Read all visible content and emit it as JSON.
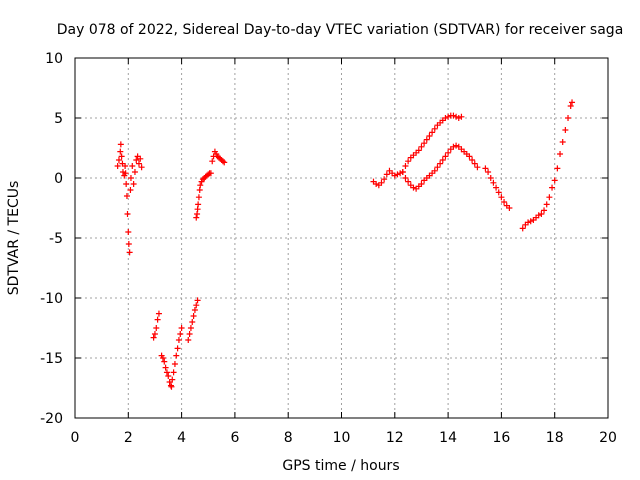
{
  "chart_data": {
    "type": "scatter",
    "title": "Day 078 of 2022, Sidereal Day-to-day VTEC variation (SDTVAR) for receiver saga",
    "xlabel": "GPS time / hours",
    "ylabel": "SDTVAR / TECUs",
    "xlim": [
      0,
      20
    ],
    "ylim": [
      -20,
      10
    ],
    "xticks": [
      "0",
      "2",
      "4",
      "6",
      "8",
      "10",
      "12",
      "14",
      "16",
      "18",
      "20"
    ],
    "yticks": [
      "10",
      "5",
      "0",
      "-5",
      "-10",
      "-15",
      "-20"
    ],
    "grid": true,
    "marker": "+",
    "color": "#ff0000",
    "series": [
      {
        "name": "seg1",
        "x": [
          1.6,
          1.65,
          1.7,
          1.72,
          1.75,
          1.78,
          1.8,
          1.85,
          1.88,
          1.9,
          1.92,
          1.95,
          1.97,
          2.0,
          2.02,
          2.05,
          2.08,
          2.1,
          2.15,
          2.2,
          2.25,
          2.3,
          2.35,
          2.4,
          2.45,
          2.5
        ],
        "y": [
          1.0,
          1.5,
          2.2,
          2.8,
          1.8,
          1.2,
          0.5,
          0.2,
          1.0,
          0.4,
          -0.5,
          -1.5,
          -3.0,
          -4.5,
          -5.5,
          -6.2,
          -1.0,
          0.0,
          1.0,
          -0.5,
          0.5,
          1.5,
          1.8,
          1.2,
          1.6,
          0.9
        ]
      },
      {
        "name": "seg2",
        "x": [
          2.95,
          3.0,
          3.05,
          3.1,
          3.15
        ],
        "y": [
          -13.3,
          -13.0,
          -12.5,
          -11.8,
          -11.3
        ]
      },
      {
        "name": "seg3",
        "x": [
          3.25,
          3.3,
          3.35,
          3.4,
          3.45,
          3.5,
          3.55,
          3.6,
          3.62,
          3.65,
          3.7,
          3.75,
          3.8,
          3.85,
          3.9,
          3.95,
          4.0
        ],
        "y": [
          -14.8,
          -15.0,
          -15.3,
          -15.8,
          -16.2,
          -16.5,
          -17.0,
          -17.3,
          -17.4,
          -16.8,
          -16.2,
          -15.5,
          -14.8,
          -14.2,
          -13.5,
          -13.0,
          -12.5
        ]
      },
      {
        "name": "seg4",
        "x": [
          4.25,
          4.3,
          4.35,
          4.4,
          4.45,
          4.5,
          4.55,
          4.6
        ],
        "y": [
          -13.5,
          -13.0,
          -12.5,
          -12.0,
          -11.5,
          -11.0,
          -10.6,
          -10.2
        ]
      },
      {
        "name": "seg5",
        "x": [
          4.55,
          4.58,
          4.6,
          4.62,
          4.65,
          4.68,
          4.7,
          4.75,
          4.8,
          4.85,
          4.9,
          4.95,
          5.0,
          5.05,
          5.1
        ],
        "y": [
          -3.3,
          -3.0,
          -2.6,
          -2.2,
          -1.6,
          -1.0,
          -0.6,
          -0.3,
          -0.1,
          0.0,
          0.1,
          0.2,
          0.3,
          0.4,
          0.4
        ]
      },
      {
        "name": "seg6",
        "x": [
          5.15,
          5.2,
          5.25,
          5.3,
          5.35,
          5.4,
          5.45,
          5.5,
          5.55,
          5.6
        ],
        "y": [
          1.4,
          1.8,
          2.2,
          2.0,
          1.8,
          1.7,
          1.6,
          1.5,
          1.4,
          1.3
        ]
      },
      {
        "name": "seg7",
        "x": [
          11.2,
          11.3,
          11.4,
          11.5,
          11.6,
          11.7,
          11.8,
          11.9,
          12.0,
          12.1,
          12.2,
          12.3,
          12.4,
          12.5,
          12.6,
          12.7,
          12.8,
          12.9,
          13.0,
          13.1,
          13.2,
          13.3,
          13.4,
          13.5,
          13.6,
          13.7,
          13.8,
          13.9,
          14.0,
          14.1,
          14.2,
          14.3,
          14.4,
          14.5,
          14.6,
          14.7,
          14.8,
          14.9,
          15.0,
          15.1
        ],
        "y": [
          -0.3,
          -0.5,
          -0.6,
          -0.4,
          -0.1,
          0.3,
          0.6,
          0.4,
          0.2,
          0.3,
          0.4,
          0.5,
          0.0,
          -0.3,
          -0.6,
          -0.8,
          -0.9,
          -0.7,
          -0.5,
          -0.2,
          0.0,
          0.2,
          0.4,
          0.6,
          0.9,
          1.2,
          1.5,
          1.8,
          2.1,
          2.4,
          2.6,
          2.7,
          2.6,
          2.4,
          2.2,
          2.0,
          1.8,
          1.5,
          1.2,
          0.9
        ]
      },
      {
        "name": "seg8",
        "x": [
          12.3,
          12.4,
          12.5,
          12.6,
          12.7,
          12.8,
          12.9,
          13.0,
          13.1,
          13.2,
          13.3,
          13.4,
          13.5,
          13.6,
          13.7,
          13.8,
          13.9,
          14.0,
          14.1,
          14.2,
          14.3,
          14.4,
          14.5
        ],
        "y": [
          0.5,
          1.0,
          1.4,
          1.7,
          1.9,
          2.1,
          2.3,
          2.6,
          2.9,
          3.2,
          3.5,
          3.8,
          4.1,
          4.4,
          4.6,
          4.8,
          5.0,
          5.1,
          5.2,
          5.2,
          5.1,
          5.0,
          5.1
        ]
      },
      {
        "name": "seg9",
        "x": [
          15.4,
          15.5,
          15.6,
          15.7,
          15.8,
          15.9,
          16.0,
          16.1,
          16.2,
          16.3
        ],
        "y": [
          0.8,
          0.5,
          0.0,
          -0.4,
          -0.8,
          -1.2,
          -1.6,
          -2.0,
          -2.3,
          -2.5
        ]
      },
      {
        "name": "seg10",
        "x": [
          16.8,
          16.9,
          17.0,
          17.1,
          17.2,
          17.3,
          17.4,
          17.5,
          17.6,
          17.7,
          17.8,
          17.9,
          18.0,
          18.1,
          18.2,
          18.3,
          18.4,
          18.5,
          18.6,
          18.65
        ],
        "y": [
          -4.2,
          -3.9,
          -3.7,
          -3.6,
          -3.5,
          -3.3,
          -3.1,
          -3.0,
          -2.7,
          -2.2,
          -1.6,
          -0.8,
          -0.2,
          0.8,
          2.0,
          3.0,
          4.0,
          5.0,
          6.0,
          6.3
        ]
      }
    ]
  }
}
